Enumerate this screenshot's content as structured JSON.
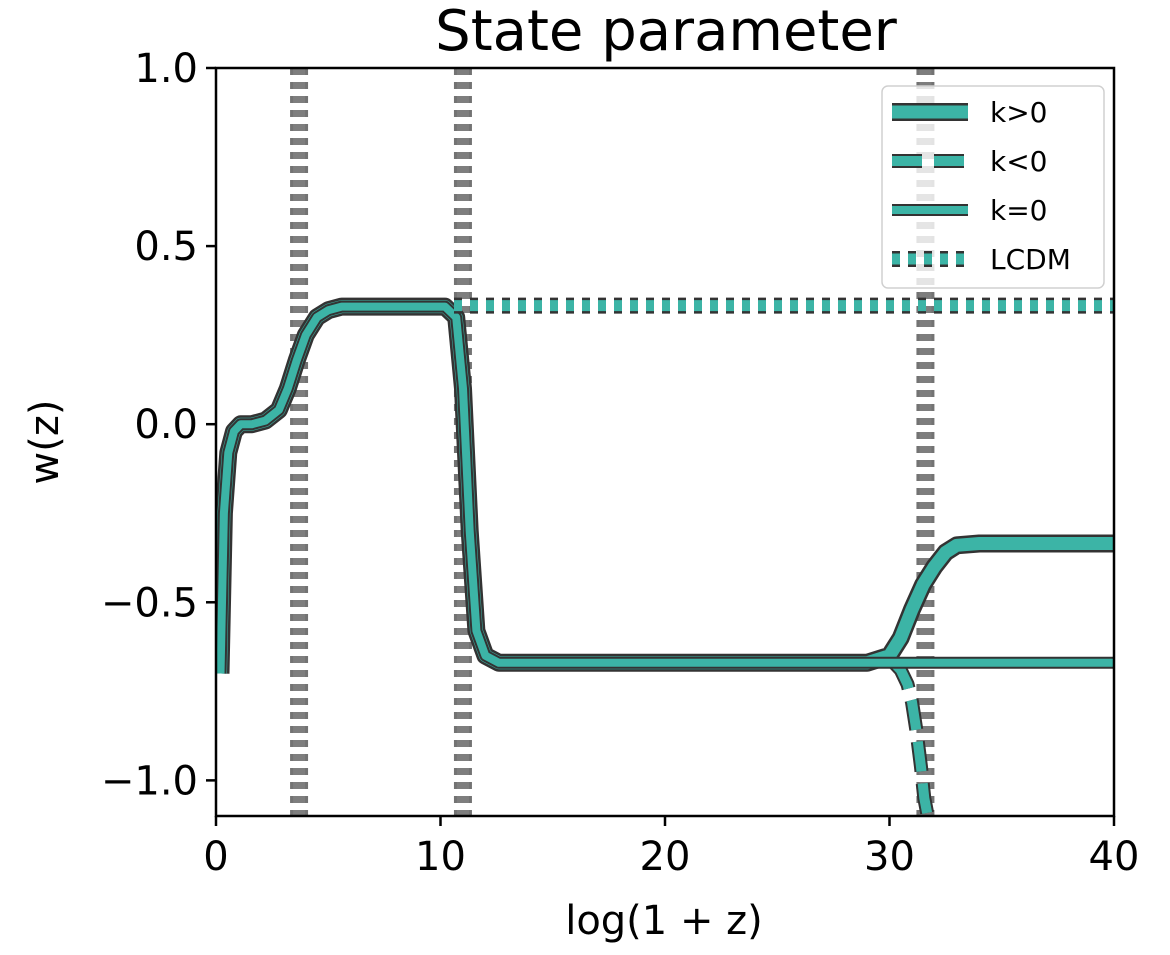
{
  "chart_data": {
    "type": "line",
    "title": "State parameter",
    "xlabel": "log(1 + z)",
    "ylabel": "w(z)",
    "xlim": [
      0,
      40
    ],
    "ylim": [
      -1.1,
      1.0
    ],
    "xticks": [
      0,
      10,
      20,
      30,
      40
    ],
    "xtick_labels": [
      "0",
      "10",
      "20",
      "30",
      "40"
    ],
    "yticks": [
      1.0,
      0.5,
      0.0,
      -0.5,
      -1.0
    ],
    "ytick_labels": [
      "1.0",
      "0.5",
      "0.0",
      "−0.5",
      "−1.0"
    ],
    "grid": false,
    "legend_position": "top-right",
    "colors": {
      "series": "#3cb4a6",
      "edge": "#333333",
      "vline": "#808080"
    },
    "vertical_lines": [
      3.7,
      11.0,
      31.6
    ],
    "series": [
      {
        "name": "k>0",
        "style": "solid-thick",
        "x": [
          0.2,
          0.35,
          0.55,
          0.8,
          1.1,
          1.6,
          2.2,
          2.8,
          3.2,
          3.6,
          4.0,
          4.5,
          5.0,
          5.6,
          6.3,
          7.5,
          9.0,
          10.2,
          10.7,
          11.0,
          11.3,
          11.6,
          12.0,
          12.6,
          14,
          20,
          25,
          29,
          30,
          30.5,
          31.0,
          31.5,
          32.0,
          32.5,
          33.0,
          34.0,
          35,
          37,
          40
        ],
        "y": [
          -0.7,
          -0.25,
          -0.08,
          -0.02,
          0.0,
          0.0,
          0.01,
          0.04,
          0.1,
          0.18,
          0.25,
          0.3,
          0.32,
          0.33,
          0.33,
          0.33,
          0.33,
          0.33,
          0.3,
          0.1,
          -0.3,
          -0.58,
          -0.65,
          -0.67,
          -0.67,
          -0.67,
          -0.67,
          -0.67,
          -0.65,
          -0.6,
          -0.52,
          -0.45,
          -0.4,
          -0.36,
          -0.34,
          -0.335,
          -0.335,
          -0.335,
          -0.335
        ]
      },
      {
        "name": "k<0",
        "style": "dashed",
        "x": [
          30.2,
          30.5,
          30.8,
          31.0,
          31.2,
          31.4,
          31.55,
          31.7,
          31.75
        ],
        "y": [
          -0.67,
          -0.69,
          -0.73,
          -0.78,
          -0.86,
          -0.96,
          -1.05,
          -1.1,
          -1.12
        ]
      },
      {
        "name": "k=0",
        "style": "solid",
        "x": [
          0.2,
          0.35,
          0.55,
          0.8,
          1.1,
          1.6,
          2.2,
          2.8,
          3.2,
          3.6,
          4.0,
          4.5,
          5.0,
          5.6,
          6.3,
          7.5,
          9.0,
          10.2,
          10.7,
          11.0,
          11.3,
          11.6,
          12.0,
          12.6,
          14,
          20,
          25,
          29,
          30,
          31,
          32,
          35,
          40
        ],
        "y": [
          -0.7,
          -0.25,
          -0.08,
          -0.02,
          0.0,
          0.0,
          0.01,
          0.04,
          0.1,
          0.18,
          0.25,
          0.3,
          0.32,
          0.33,
          0.33,
          0.33,
          0.33,
          0.33,
          0.3,
          0.1,
          -0.3,
          -0.58,
          -0.65,
          -0.67,
          -0.67,
          -0.67,
          -0.67,
          -0.67,
          -0.67,
          -0.67,
          -0.67,
          -0.67,
          -0.67
        ]
      },
      {
        "name": "LCDM",
        "style": "dotted",
        "x": [
          10.6,
          40
        ],
        "y": [
          0.333,
          0.333
        ]
      }
    ]
  }
}
